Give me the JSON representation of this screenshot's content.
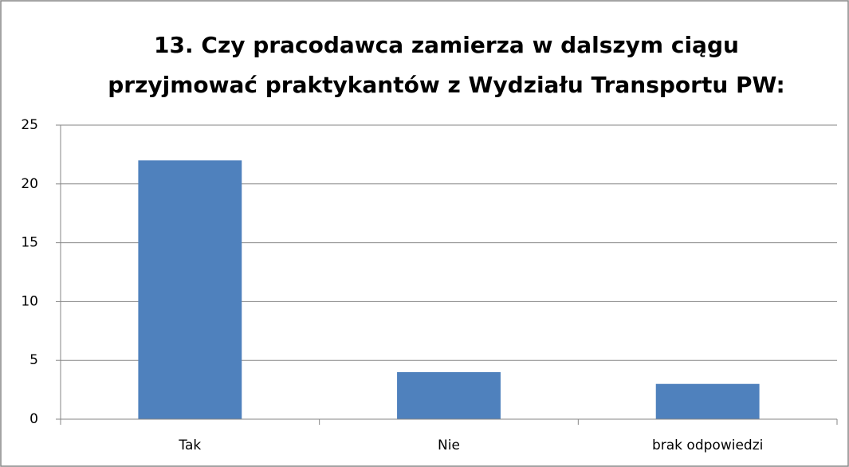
{
  "chart_data": {
    "type": "bar",
    "title": [
      "13. Czy pracodawca zamierza w dalszym ciągu",
      "przyjmować praktykantów z Wydziału Transportu PW:"
    ],
    "categories": [
      "Tak",
      "Nie",
      "brak odpowiedzi"
    ],
    "values": [
      22,
      4,
      3
    ],
    "color": "#4f81bd",
    "ylim": [
      0,
      25
    ],
    "yticks": [
      0,
      5,
      10,
      15,
      20,
      25
    ],
    "grid": true
  }
}
